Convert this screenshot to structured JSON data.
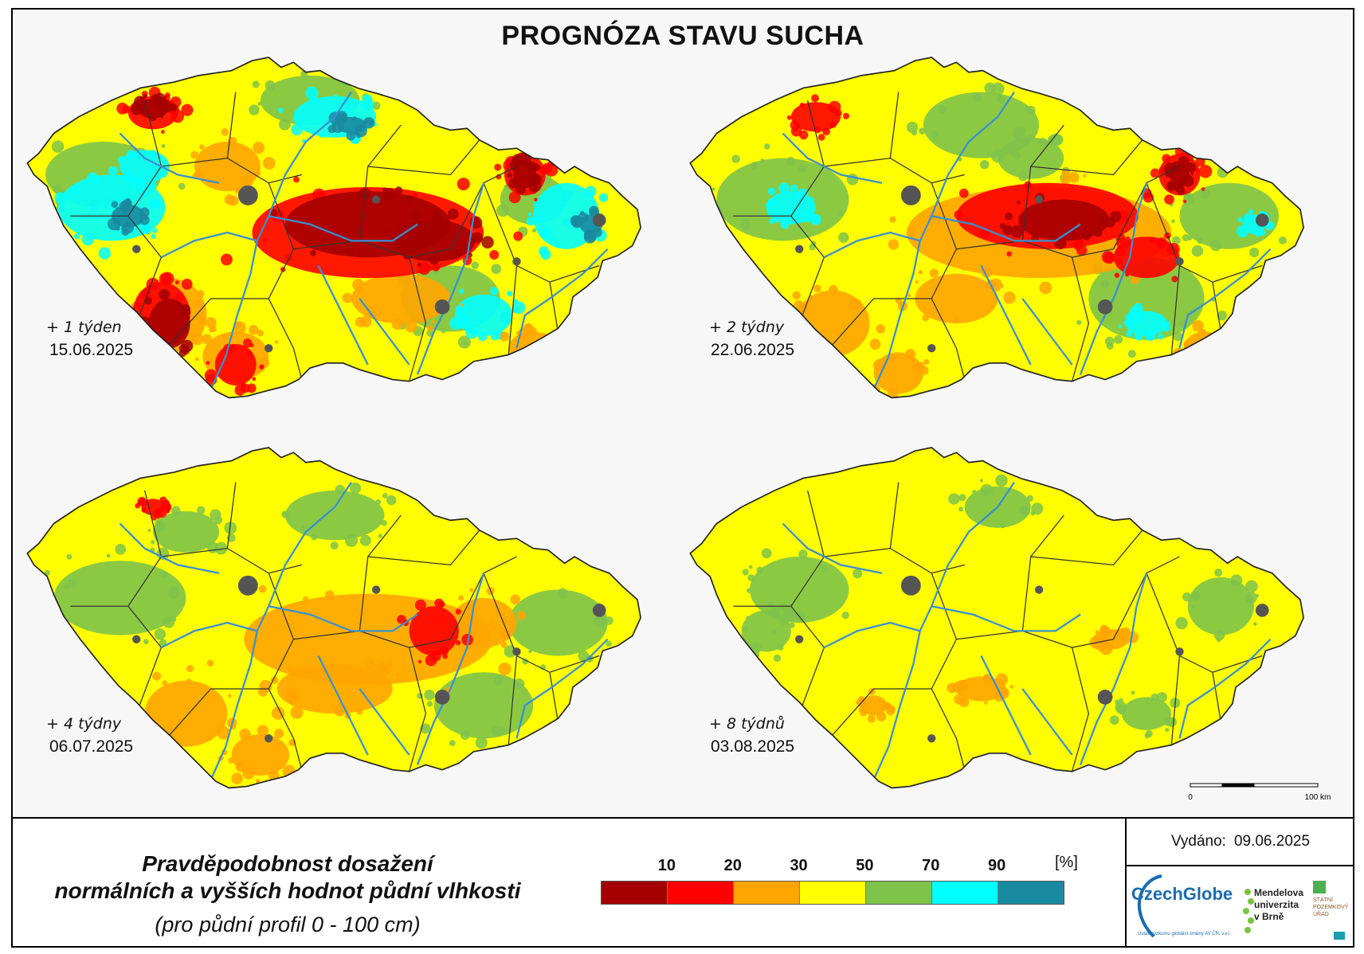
{
  "title": "PROGNÓZA STAVU SUCHA",
  "panels": [
    {
      "label": "+ 1 týden",
      "date": "15.06.2025",
      "dominant": "mixed-dry"
    },
    {
      "label": "+ 2 týdny",
      "date": "22.06.2025",
      "dominant": "mixed-moderate"
    },
    {
      "label": "+ 4 týdny",
      "date": "06.07.2025",
      "dominant": "mostly-50"
    },
    {
      "label": "+ 8 týdnů",
      "date": "03.08.2025",
      "dominant": "yellow"
    }
  ],
  "legend": {
    "title_line1": "Pravděpodobnost dosažení",
    "title_line2": "normálních a vyšších hodnot půdní vlhkosti",
    "subtitle": "(pro půdní profil 0 - 100 cm)",
    "unit": "[%]",
    "ticks": [
      "10",
      "20",
      "30",
      "50",
      "70",
      "90"
    ],
    "colors": [
      "#a50000",
      "#ff0000",
      "#ffa500",
      "#ffff00",
      "#7fc34a",
      "#00ffff",
      "#1a8aa0"
    ]
  },
  "scalebar": {
    "start": "0",
    "end": "100 km"
  },
  "issued": {
    "label": "Vydáno:",
    "date": "09.06.2025"
  },
  "logos": {
    "czechglobe": "CzechGlobe",
    "czechglobe_sub": "Ústav výzkumu globální změny AV ČR, v.v.i.",
    "mendel": [
      "Mendelova",
      "univerzita",
      "v Brně"
    ],
    "spu": [
      "STÁTNÍ",
      "POZEMKOVÝ",
      "ÚŘAD"
    ]
  },
  "colors": {
    "river": "#3a8fd0",
    "border": "#333333",
    "city": "#555555",
    "brand_blue": "#1b6bb0",
    "mendel_green": "#7cc242"
  }
}
